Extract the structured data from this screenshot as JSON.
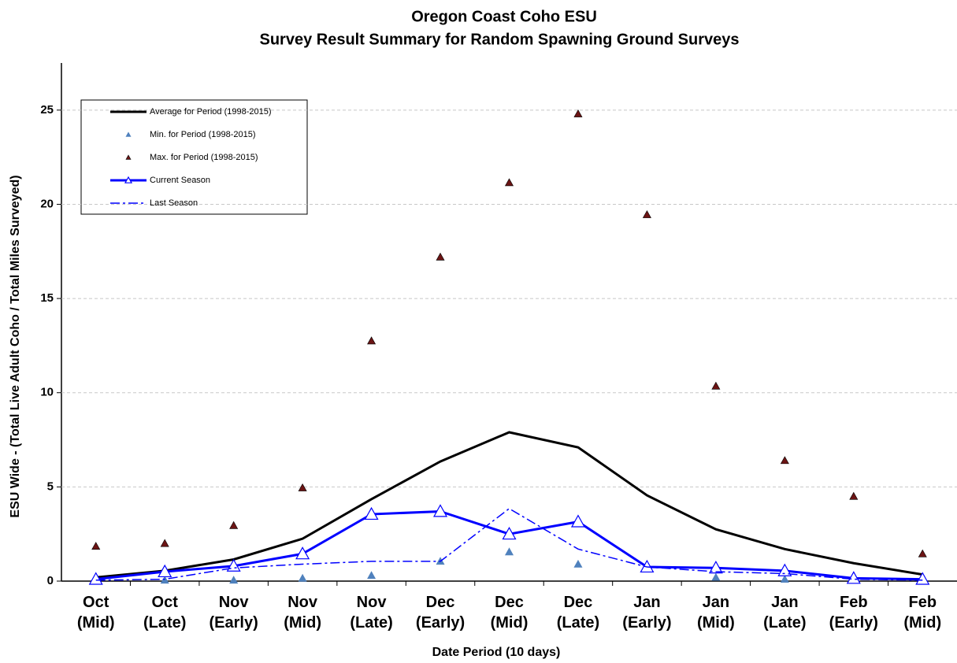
{
  "chart_data": {
    "type": "line",
    "title": "Oregon Coast Coho ESU",
    "subtitle": "Survey Result Summary for Random Spawning Ground Surveys",
    "x_label": "Date Period (10 days)",
    "y_label": "ESU Wide - (Total Live Adult Coho / Total Miles Surveyed)",
    "categories": [
      "Oct (Mid)",
      "Oct (Late)",
      "Nov (Early)",
      "Nov (Mid)",
      "Nov (Late)",
      "Dec (Early)",
      "Dec (Mid)",
      "Dec (Late)",
      "Jan (Early)",
      "Jan (Mid)",
      "Jan (Late)",
      "Feb (Early)",
      "Feb (Mid)"
    ],
    "ylim": [
      0,
      27.5
    ],
    "yticks": [
      0,
      5,
      10,
      15,
      20,
      25
    ],
    "grid": true,
    "legend": "top-left",
    "series": [
      {
        "name": "Average for Period (1998-2015)",
        "color": "#000000",
        "style": "line",
        "values": [
          0.2,
          0.55,
          1.15,
          2.25,
          4.35,
          6.35,
          7.9,
          7.1,
          4.55,
          2.75,
          1.7,
          0.95,
          0.35
        ]
      },
      {
        "name": "Min. for Period (1998-2015)",
        "color": "#4f81bd",
        "style": "marker",
        "values": [
          0.05,
          0.05,
          0.05,
          0.15,
          0.3,
          1.05,
          1.55,
          0.9,
          0.8,
          0.2,
          0.1,
          0.05,
          0.05
        ]
      },
      {
        "name": "Max. for Period (1998-2015)",
        "color": "#6b1414",
        "style": "marker",
        "values": [
          1.85,
          2.0,
          2.95,
          4.95,
          12.75,
          17.2,
          21.15,
          24.8,
          19.45,
          10.35,
          6.4,
          4.5,
          1.45
        ]
      },
      {
        "name": "Current Season",
        "color": "#0000ff",
        "style": "line-marker",
        "values": [
          0.1,
          0.5,
          0.8,
          1.45,
          3.55,
          3.7,
          2.5,
          3.15,
          0.75,
          0.7,
          0.55,
          0.15,
          0.1
        ]
      },
      {
        "name": "Last Season",
        "color": "#0000ff",
        "style": "dashdot",
        "values": [
          0.05,
          0.1,
          0.7,
          0.9,
          1.05,
          1.05,
          3.85,
          1.7,
          0.75,
          0.5,
          0.4,
          0.1,
          0.05
        ]
      }
    ]
  }
}
